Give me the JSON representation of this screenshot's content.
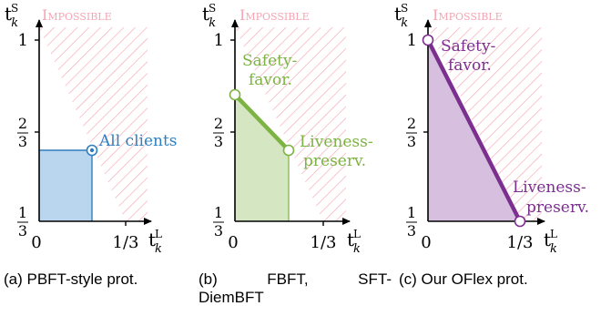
{
  "colors": {
    "impossible": "#f4a6b4",
    "blue": "#2f7fc0",
    "blue_fill": "#b9d6ee",
    "green": "#7cb342",
    "green_fill": "#d5e6c2",
    "purple": "#7b2f8e",
    "purple_fill": "#d7c0df",
    "axis": "#000000"
  },
  "axis_labels": {
    "y_var": "t",
    "y_sup": "S",
    "y_sub": "k",
    "x_var": "t",
    "x_sup": "L",
    "x_sub": "k"
  },
  "ticks": {
    "y_one": "1",
    "y_two_thirds_num": "2",
    "y_two_thirds_den": "3",
    "y_one_third_num": "1",
    "y_one_third_den": "3",
    "x_zero": "0",
    "x_one_third": "1/3"
  },
  "impossible_label": "Impossible",
  "panels": [
    {
      "caption": "(a) PBFT-style prot.",
      "points": [
        {
          "label": "All clients"
        }
      ]
    },
    {
      "caption_parts": [
        "(b)",
        "FBFT,",
        "SFT-"
      ],
      "caption_line2": "DiemBFT",
      "points": [
        {
          "label_line1": "Safety-",
          "label_line2": "favor."
        },
        {
          "label_line1": "Liveness-",
          "label_line2": "preserv."
        }
      ]
    },
    {
      "caption": "(c) Our OFlex prot.",
      "points": [
        {
          "label_line1": "Safety-",
          "label_line2": "favor."
        },
        {
          "label_line1": "Liveness-",
          "label_line2": "preserv."
        }
      ]
    }
  ]
}
